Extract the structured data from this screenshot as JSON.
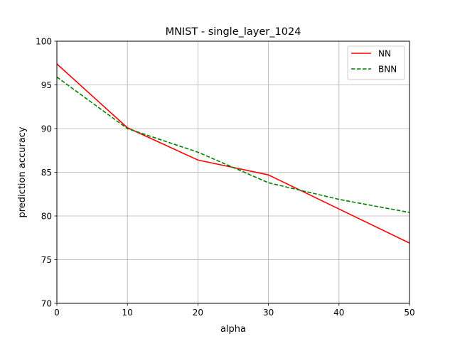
{
  "chart_data": {
    "type": "line",
    "title": "MNIST - single_layer_1024",
    "xlabel": "alpha",
    "ylabel": "prediction accuracy",
    "xlim": [
      0,
      50
    ],
    "ylim": [
      70,
      100
    ],
    "xticks": [
      0,
      10,
      20,
      30,
      40,
      50
    ],
    "yticks": [
      70,
      75,
      80,
      85,
      90,
      95,
      100
    ],
    "grid": true,
    "legend_position": "top-right",
    "x": [
      0,
      10,
      20,
      30,
      40,
      50
    ],
    "series": [
      {
        "name": "NN",
        "color": "#ff0000",
        "style": "solid",
        "values": [
          97.4,
          90.1,
          86.4,
          84.7,
          80.8,
          76.9
        ]
      },
      {
        "name": "BNN",
        "color": "#008000",
        "style": "dashed",
        "values": [
          95.9,
          90.0,
          87.3,
          83.8,
          81.9,
          80.4
        ]
      }
    ]
  }
}
